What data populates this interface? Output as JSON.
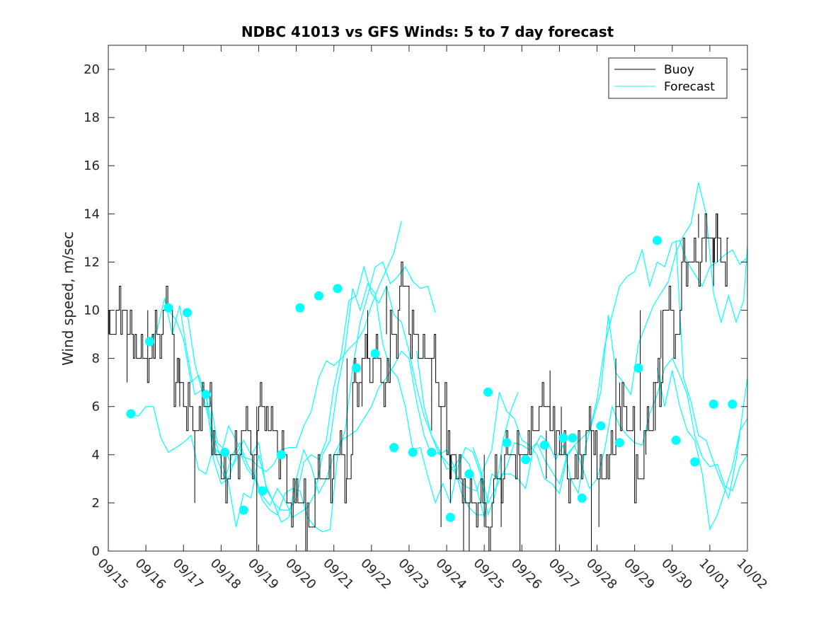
{
  "chart_data": {
    "type": "line",
    "title": "NDBC 41013 vs GFS Winds: 5 to 7 day forecast",
    "xlabel": "",
    "ylabel": "Wind speed, m/sec",
    "xlim": [
      0,
      17
    ],
    "ylim": [
      0,
      21
    ],
    "yticks": [
      0,
      2,
      4,
      6,
      8,
      10,
      12,
      14,
      16,
      18,
      20
    ],
    "xtick_labels": [
      "09/15",
      "09/16",
      "09/17",
      "09/18",
      "09/19",
      "09/20",
      "09/21",
      "09/22",
      "09/23",
      "09/24",
      "09/25",
      "09/26",
      "09/27",
      "09/28",
      "09/29",
      "09/30",
      "10/01",
      "10/02"
    ],
    "legend": {
      "position": "top-right",
      "entries": [
        "Buoy",
        "Forecast"
      ]
    },
    "colors": {
      "buoy": "#000000",
      "forecast": "#00ffff",
      "axis": "#262626"
    },
    "buoy": {
      "x": [
        0.0,
        0.25,
        0.5,
        0.75,
        1.0,
        1.25,
        1.5,
        1.75,
        2.0,
        2.25,
        2.5,
        2.75,
        3.0,
        3.25,
        3.5,
        3.75,
        4.0,
        4.25,
        4.5,
        4.75,
        5.0,
        5.25,
        5.5,
        5.75,
        6.0,
        6.25,
        6.5,
        6.75,
        7.0,
        7.25,
        7.5,
        7.75,
        8.0,
        8.25,
        8.5,
        8.75,
        9.0,
        9.25,
        9.5,
        9.75,
        10.0,
        10.25,
        10.5,
        10.75,
        11.0,
        11.25,
        11.5,
        11.75,
        12.0,
        12.25,
        12.5,
        12.75,
        13.0,
        13.25,
        13.5,
        13.75,
        14.0,
        14.25,
        14.5,
        14.75,
        15.0,
        15.25,
        15.5,
        15.75,
        16.0,
        16.25
      ],
      "y": [
        9,
        10,
        9,
        8,
        8,
        9,
        10,
        7,
        6,
        5,
        6,
        4,
        3,
        4,
        5,
        4,
        6,
        5,
        4,
        2,
        2,
        1,
        3,
        3,
        4,
        3,
        7,
        8,
        8,
        7,
        9,
        11,
        9,
        8,
        8,
        6,
        4,
        3,
        2,
        2,
        1,
        3,
        4,
        4,
        4,
        5,
        6,
        5,
        4,
        3,
        4,
        5,
        3,
        4,
        6,
        5,
        3,
        5,
        7,
        10,
        9,
        12,
        12,
        13,
        13,
        12
      ],
      "noise": [
        [
          0.02,
          10
        ],
        [
          0.5,
          7
        ],
        [
          1.05,
          10
        ],
        [
          1.9,
          8
        ],
        [
          2.3,
          2
        ],
        [
          2.75,
          6
        ],
        [
          3.55,
          5
        ],
        [
          3.95,
          0
        ],
        [
          5.3,
          1
        ],
        [
          6.35,
          8
        ],
        [
          6.75,
          6
        ],
        [
          6.9,
          10
        ],
        [
          7.4,
          11
        ],
        [
          8.1,
          9
        ],
        [
          8.6,
          5
        ],
        [
          8.85,
          1
        ],
        [
          9.1,
          2
        ],
        [
          9.45,
          0
        ],
        [
          9.6,
          0
        ],
        [
          10.0,
          4
        ],
        [
          10.45,
          1
        ],
        [
          10.95,
          0
        ],
        [
          11.65,
          3
        ],
        [
          11.75,
          7.5
        ],
        [
          12.05,
          6
        ],
        [
          11.9,
          0
        ],
        [
          12.85,
          0
        ],
        [
          13.05,
          1
        ],
        [
          13.6,
          7
        ],
        [
          13.5,
          8
        ],
        [
          14.15,
          10
        ],
        [
          14.3,
          4
        ],
        [
          14.55,
          5
        ],
        [
          14.7,
          8
        ],
        [
          15.7,
          14
        ],
        [
          15.9,
          12
        ],
        [
          16.1,
          11
        ],
        [
          16.2,
          14
        ]
      ]
    },
    "forecast_series": [
      {
        "x": [
          0.6,
          0.8,
          1.0,
          1.2,
          1.4,
          1.6,
          1.8,
          2.0,
          2.2,
          2.4,
          2.6,
          2.8,
          3.0,
          3.2,
          3.4,
          3.6,
          3.8,
          4.0,
          4.2,
          4.4,
          4.6,
          4.8,
          5.0,
          5.2,
          5.4,
          5.6,
          5.8,
          6.0,
          6.2,
          6.4,
          6.6,
          6.8,
          7.0,
          7.2,
          7.4,
          7.6,
          7.8
        ],
        "y": [
          5.7,
          5.6,
          6.0,
          6.0,
          4.7,
          4.1,
          4.3,
          4.5,
          4.8,
          3.4,
          3.2,
          4.3,
          4.0,
          5.2,
          4.6,
          3.9,
          3.8,
          3.5,
          3.3,
          3.6,
          4.2,
          4.3,
          4.3,
          5.2,
          5.8,
          7.2,
          7.9,
          7.7,
          8.0,
          8.4,
          8.7,
          9.2,
          10.2,
          11.0,
          11.7,
          12.4,
          13.7
        ]
      },
      {
        "x": [
          1.1,
          1.3,
          1.5,
          1.7,
          1.9,
          2.1,
          2.3,
          2.5,
          2.7,
          2.9,
          3.1,
          3.3,
          3.5,
          3.7,
          3.9,
          4.1,
          4.3,
          4.5,
          4.7,
          4.9,
          5.1,
          5.3,
          5.5,
          5.7,
          5.9,
          6.1,
          6.3,
          6.5,
          6.7,
          6.9,
          7.1,
          7.3,
          7.5,
          7.7,
          7.9,
          8.1,
          8.3,
          8.5,
          8.7
        ],
        "y": [
          8.7,
          9.2,
          10.5,
          9.0,
          10.2,
          8.2,
          6.5,
          6.7,
          6.4,
          4.5,
          4.2,
          3.5,
          4.1,
          3.4,
          3.0,
          2.1,
          1.7,
          1.5,
          2.4,
          2.6,
          2.5,
          1.4,
          1.0,
          0.8,
          0.9,
          4.0,
          5.0,
          7.6,
          9.5,
          10.6,
          11.8,
          12.0,
          11.1,
          11.4,
          11.8,
          11.2,
          10.9,
          11.0,
          9.9
        ]
      },
      {
        "x": [
          1.6,
          1.8,
          2.0,
          2.2,
          2.4,
          2.6,
          2.8,
          3.0,
          3.2,
          3.4,
          3.6,
          3.8,
          4.0,
          4.2,
          4.4,
          4.6,
          4.8,
          5.0,
          5.2,
          5.4,
          5.6,
          5.8,
          6.0,
          6.2,
          6.4,
          6.6,
          6.8,
          7.0,
          7.2,
          7.4,
          7.6,
          7.8,
          8.0,
          8.2,
          8.4,
          8.6,
          8.8,
          9.0,
          9.2,
          9.4,
          9.6,
          9.8,
          10.0
        ],
        "y": [
          10.0,
          9.6,
          8.8,
          7.0,
          7.3,
          6.5,
          4.8,
          3.8,
          2.8,
          1.0,
          2.4,
          2.2,
          4.0,
          2.7,
          2.0,
          1.7,
          1.7,
          2.2,
          3.7,
          4.0,
          3.8,
          4.6,
          6.8,
          8.2,
          10.4,
          10.6,
          11.8,
          10.7,
          10.3,
          11.0,
          9.8,
          9.5,
          8.3,
          6.8,
          5.6,
          4.8,
          4.2,
          3.4,
          3.5,
          2.4,
          1.8,
          1.5,
          1.5
        ]
      },
      {
        "x": [
          2.1,
          2.3,
          2.5,
          2.7,
          2.9,
          3.1,
          3.3,
          3.5,
          3.7,
          3.9,
          4.1,
          4.3,
          4.5,
          4.7,
          4.9,
          5.1,
          5.3,
          5.5,
          5.7,
          5.9,
          6.1,
          6.3,
          6.5,
          6.7,
          6.9,
          7.1,
          7.3,
          7.5,
          7.7,
          7.9,
          8.1,
          8.3,
          8.5,
          8.7,
          8.9,
          9.1,
          9.3,
          9.5,
          9.7,
          9.9,
          10.1,
          10.3,
          10.5,
          10.7,
          10.9
        ],
        "y": [
          9.9,
          7.8,
          6.6,
          5.3,
          3.8,
          3.0,
          4.0,
          4.5,
          3.6,
          3.1,
          2.3,
          1.9,
          2.6,
          2.1,
          1.4,
          1.6,
          1.8,
          2.4,
          4.0,
          4.6,
          6.8,
          8.4,
          10.9,
          10.0,
          11.1,
          10.7,
          8.6,
          7.6,
          7.2,
          6.0,
          4.2,
          4.3,
          3.1,
          2.0,
          2.8,
          2.0,
          3.5,
          4.3,
          4.1,
          3.2,
          1.5,
          2.4,
          4.6,
          5.8,
          6.6
        ]
      },
      {
        "x": [
          2.6,
          2.8,
          3.0,
          3.2,
          3.4,
          3.6,
          3.8,
          4.0,
          4.2,
          4.4,
          4.6,
          4.8,
          5.0,
          5.2,
          5.4,
          5.6,
          5.8,
          6.0,
          6.2,
          6.4,
          6.6,
          6.8,
          7.0,
          7.2,
          7.4,
          7.6,
          7.8,
          8.0,
          8.2,
          8.4,
          8.6,
          8.8,
          9.0,
          9.2,
          9.4,
          9.6,
          9.8,
          10.0,
          10.2,
          10.4,
          10.6,
          10.8,
          11.0,
          11.2,
          11.4,
          11.6,
          11.8,
          12.0,
          12.2,
          12.4,
          12.6,
          12.8,
          13.0,
          13.2,
          13.4,
          13.6,
          13.8,
          14.0,
          14.2,
          14.4,
          14.6,
          14.8,
          15.0,
          15.2,
          15.4,
          15.6,
          15.8,
          16.0,
          16.2,
          16.4,
          16.6,
          16.8,
          17.0
        ],
        "y": [
          6.5,
          3.8,
          2.8,
          3.0,
          4.0,
          4.6,
          4.0,
          4.5,
          2.6,
          2.0,
          1.2,
          1.4,
          3.0,
          4.2,
          3.5,
          2.4,
          3.0,
          4.0,
          4.6,
          4.8,
          5.0,
          5.5,
          6.0,
          6.8,
          7.2,
          7.7,
          8.3,
          8.0,
          6.2,
          4.8,
          4.0,
          4.1,
          3.7,
          3.3,
          2.8,
          2.6,
          2.5,
          3.5,
          4.2,
          6.6,
          5.8,
          5.5,
          4.6,
          4.4,
          4.0,
          3.0,
          2.8,
          2.4,
          3.9,
          4.4,
          3.5,
          2.6,
          3.0,
          4.2,
          6.0,
          5.2,
          4.8,
          4.5,
          4.4,
          5.7,
          6.5,
          7.6,
          8.0,
          7.3,
          6.5,
          4.8,
          3.9,
          3.5,
          3.6,
          2.7,
          2.5,
          3.5,
          4.0
        ]
      },
      {
        "x": [
          8.2,
          8.4,
          8.6,
          8.8,
          9.0,
          9.2,
          9.4,
          9.6,
          9.8,
          10.0,
          10.2,
          10.4,
          10.6,
          10.8,
          11.0,
          11.2,
          11.4,
          11.6,
          11.8,
          12.0,
          12.2,
          12.4,
          12.6,
          12.8,
          13.0,
          13.2,
          13.4,
          13.6,
          13.8,
          14.0,
          14.2,
          14.4,
          14.6,
          14.8,
          15.0,
          15.2,
          15.4,
          15.6,
          15.8,
          16.0,
          16.2,
          16.4,
          16.6,
          16.8,
          17.0
        ],
        "y": [
          8.3,
          6.0,
          4.8,
          4.0,
          4.2,
          3.5,
          4.0,
          3.6,
          2.6,
          1.4,
          3.2,
          3.0,
          3.5,
          4.5,
          4.4,
          4.2,
          4.5,
          3.8,
          3.3,
          2.8,
          4.0,
          4.4,
          4.7,
          5.0,
          6.3,
          8.5,
          9.8,
          11.0,
          11.4,
          11.6,
          12.5,
          11.0,
          12.0,
          11.8,
          12.8,
          12.9,
          12.0,
          11.5,
          11.0,
          11.8,
          12.0,
          12.3,
          12.5,
          11.9,
          12.2
        ]
      },
      {
        "x": [
          9.7,
          9.9,
          10.1,
          10.3,
          10.5,
          10.7,
          10.9,
          11.1,
          11.3,
          11.5,
          11.7,
          11.9,
          12.1,
          12.3,
          12.5,
          12.7,
          12.9,
          13.1,
          13.3,
          13.5,
          13.7,
          13.9,
          14.1,
          14.3,
          14.5,
          14.7,
          14.9,
          15.1,
          15.3,
          15.5,
          15.7,
          15.9,
          16.1,
          16.3,
          16.5,
          16.7,
          16.9,
          17.0
        ],
        "y": [
          4.3,
          3.4,
          2.0,
          2.6,
          3.2,
          3.2,
          3.0,
          2.6,
          4.2,
          4.8,
          4.5,
          3.8,
          4.4,
          3.0,
          2.4,
          4.4,
          5.5,
          6.6,
          9.8,
          7.4,
          7.0,
          6.5,
          8.6,
          9.4,
          10.2,
          10.7,
          11.2,
          12.4,
          13.1,
          13.6,
          15.3,
          14.0,
          10.7,
          9.5,
          10.6,
          9.5,
          10.4,
          12.7
        ]
      },
      {
        "x": [
          14.6,
          14.8,
          15.0,
          15.2,
          15.4,
          15.6,
          15.8,
          16.0,
          16.2,
          16.4,
          16.6,
          16.8,
          17.0
        ],
        "y": [
          7.6,
          6.0,
          7.5,
          6.0,
          5.0,
          4.6,
          3.2,
          0.9,
          1.5,
          2.5,
          3.5,
          5.0,
          5.5
        ]
      },
      {
        "x": [
          15.1,
          15.3,
          15.5,
          15.7,
          15.9,
          16.1,
          16.3,
          16.5,
          16.7,
          16.9,
          17.0
        ],
        "y": [
          12.9,
          7.2,
          6.2,
          4.8,
          4.6,
          3.7,
          2.9,
          2.2,
          3.8,
          6.1,
          7.2
        ]
      }
    ],
    "forecast_markers": {
      "x": [
        0.6,
        1.1,
        1.6,
        2.1,
        2.6,
        3.1,
        3.6,
        4.1,
        4.6,
        5.1,
        5.6,
        6.1,
        6.6,
        7.1,
        7.6,
        8.1,
        8.6,
        9.1,
        9.6,
        10.1,
        10.6,
        11.1,
        11.6,
        12.1,
        12.35,
        12.6,
        13.1,
        13.6,
        14.1,
        14.6,
        15.1,
        15.6,
        16.1,
        16.6
      ],
      "y": [
        5.7,
        8.7,
        10.1,
        9.9,
        6.5,
        4.1,
        1.7,
        2.5,
        4.0,
        10.1,
        10.6,
        10.9,
        7.6,
        8.2,
        4.3,
        4.1,
        4.1,
        1.4,
        3.2,
        6.6,
        4.5,
        3.8,
        4.4,
        4.7,
        4.7,
        2.2,
        5.2,
        4.5,
        7.6,
        12.9,
        4.6,
        3.7,
        6.1,
        6.1
      ]
    }
  }
}
